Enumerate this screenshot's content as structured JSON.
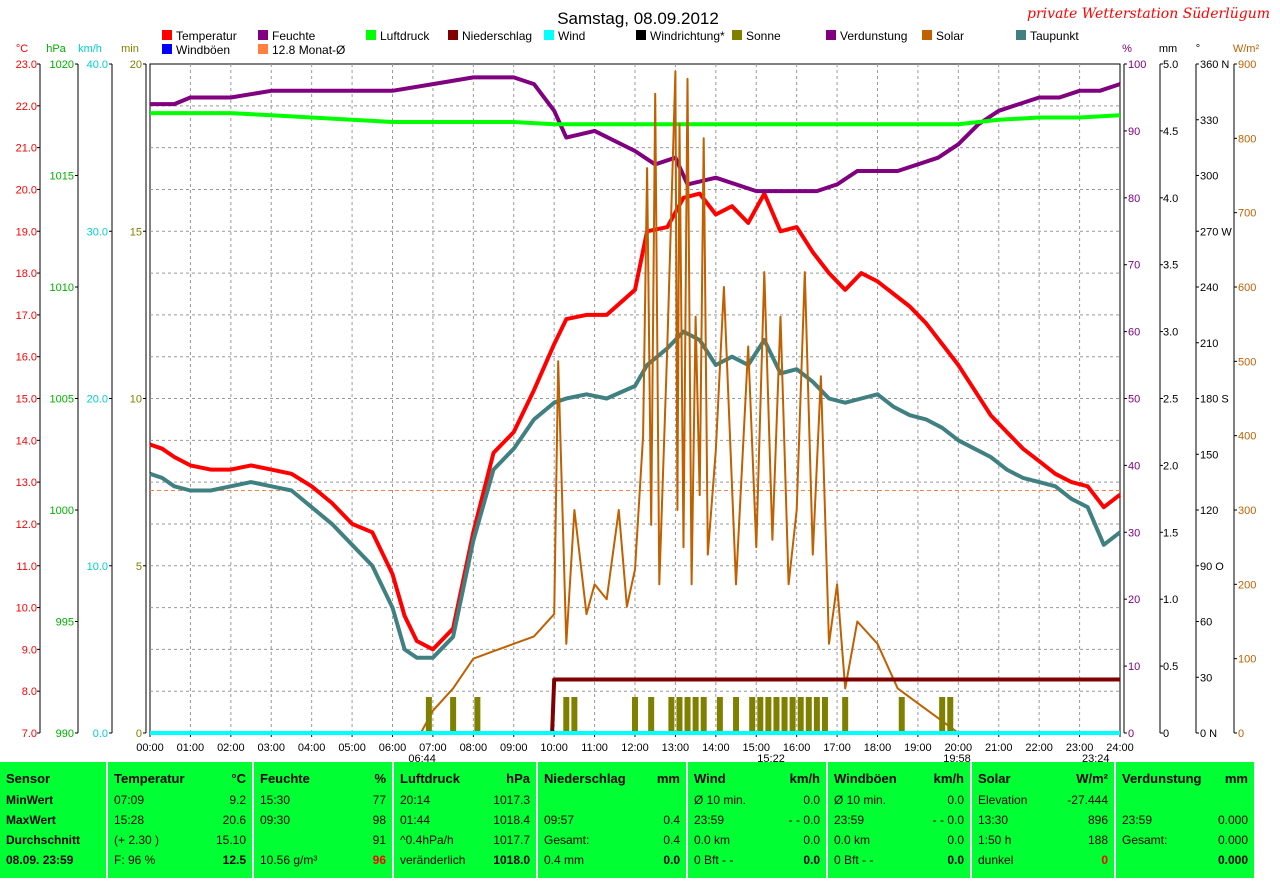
{
  "title": "Samstag, 08.09.2012",
  "station": "private Wetterstation Süderlügum",
  "legend": [
    {
      "label": "Temperatur",
      "color": "#ff0000"
    },
    {
      "label": "Feuchte",
      "color": "#800080"
    },
    {
      "label": "Luftdruck",
      "color": "#00ff00"
    },
    {
      "label": "Niederschlag",
      "color": "#800000"
    },
    {
      "label": "Wind",
      "color": "#00ffff"
    },
    {
      "label": "Windrichtung*",
      "color": "#000000"
    },
    {
      "label": "Sonne",
      "color": "#808000"
    },
    {
      "label": "Verdunstung",
      "color": "#800080"
    },
    {
      "label": "Solar",
      "color": "#c06000"
    },
    {
      "label": "Taupunkt",
      "color": "#408080"
    },
    {
      "label": "Windböen",
      "color": "#0000ff"
    },
    {
      "label": "12.8 Monat-Ø",
      "color": "#ff8040"
    }
  ],
  "chart_data": {
    "type": "line",
    "x_unit": "time of day",
    "x_ticks": [
      "00:00",
      "01:00",
      "02:00",
      "03:00",
      "04:00",
      "05:00",
      "06:00",
      "07:00",
      "08:00",
      "09:00",
      "10:00",
      "11:00",
      "12:00",
      "13:00",
      "14:00",
      "15:00",
      "16:00",
      "17:00",
      "18:00",
      "19:00",
      "20:00",
      "21:00",
      "22:00",
      "23:00",
      "24:00"
    ],
    "x_marks": [
      "06:44",
      "15:22",
      "19:58",
      "23:24"
    ],
    "axes": {
      "temperature": {
        "unit": "°C",
        "range": [
          7.0,
          23.0
        ],
        "ticks": [
          "7.0",
          "8.0",
          "9.0",
          "10.0",
          "11.0",
          "12.0",
          "13.0",
          "14.0",
          "15.0",
          "16.0",
          "17.0",
          "18.0",
          "19.0",
          "20.0",
          "21.0",
          "22.0",
          "23.0"
        ],
        "color": "#ff0000"
      },
      "pressure": {
        "unit": "hPa",
        "range": [
          990,
          1020
        ],
        "ticks": [
          "990",
          "995",
          "1000",
          "1005",
          "1010",
          "1015",
          "1020"
        ],
        "color": "#00b000"
      },
      "wind": {
        "unit": "km/h",
        "range": [
          0,
          40
        ],
        "ticks": [
          "0.0",
          "10.0",
          "20.0",
          "30.0",
          "40.0"
        ],
        "color": "#00d0d0"
      },
      "sun": {
        "unit": "min",
        "range": [
          0,
          20
        ],
        "ticks": [
          "0",
          "5",
          "10",
          "15",
          "20"
        ],
        "color": "#808000"
      },
      "humidity": {
        "unit": "%",
        "range": [
          0,
          100
        ],
        "ticks": [
          "0",
          "10",
          "20",
          "30",
          "40",
          "50",
          "60",
          "70",
          "80",
          "90",
          "100"
        ],
        "color": "#800080"
      },
      "precip": {
        "unit": "mm",
        "range": [
          0,
          5
        ],
        "ticks": [
          "0",
          "0.5",
          "1.0",
          "1.5",
          "2.0",
          "2.5",
          "3.0",
          "3.5",
          "4.0",
          "4.5",
          "5.0"
        ],
        "color": "#000000"
      },
      "direction": {
        "unit": "°",
        "range": [
          0,
          360
        ],
        "ticks": [
          "0 N",
          "30",
          "60",
          "90 O",
          "120",
          "150",
          "180 S",
          "210",
          "240",
          "270 W",
          "300",
          "330",
          "360 N"
        ],
        "color": "#000000"
      },
      "solar": {
        "unit": "W/m²",
        "range": [
          0,
          900
        ],
        "ticks": [
          "0",
          "100",
          "200",
          "300",
          "400",
          "500",
          "600",
          "700",
          "800",
          "900"
        ],
        "color": "#c06000"
      }
    },
    "month_avg_temperature": 12.8,
    "series": [
      {
        "name": "Temperatur",
        "axis": "temperature",
        "color": "#ff0000",
        "x": [
          0,
          0.3,
          0.6,
          1,
          1.5,
          2,
          2.5,
          3,
          3.5,
          4,
          4.5,
          5,
          5.5,
          6,
          6.3,
          6.6,
          7,
          7.5,
          8,
          8.5,
          9,
          9.5,
          10,
          10.3,
          10.8,
          11.3,
          12,
          12.3,
          12.8,
          13.2,
          13.6,
          14,
          14.4,
          14.8,
          15.2,
          15.6,
          16,
          16.4,
          16.8,
          17.2,
          17.6,
          18,
          18.4,
          18.8,
          19.2,
          19.6,
          20,
          20.4,
          20.8,
          21.2,
          21.6,
          22,
          22.4,
          22.8,
          23.2,
          23.6,
          24
        ],
        "y": [
          13.9,
          13.8,
          13.6,
          13.4,
          13.3,
          13.3,
          13.4,
          13.3,
          13.2,
          12.9,
          12.5,
          12.0,
          11.8,
          10.8,
          9.8,
          9.2,
          9.0,
          9.5,
          11.8,
          13.7,
          14.2,
          15.2,
          16.3,
          16.9,
          17.0,
          17.0,
          17.6,
          19.0,
          19.1,
          19.8,
          19.9,
          19.4,
          19.6,
          19.2,
          19.9,
          19.0,
          19.1,
          18.5,
          18.0,
          17.6,
          18.0,
          17.8,
          17.5,
          17.2,
          16.8,
          16.3,
          15.8,
          15.2,
          14.6,
          14.2,
          13.8,
          13.5,
          13.2,
          13.0,
          12.9,
          12.4,
          12.7
        ]
      },
      {
        "name": "Taupunkt",
        "axis": "temperature",
        "color": "#408080",
        "x": [
          0,
          0.3,
          0.6,
          1,
          1.5,
          2,
          2.5,
          3,
          3.5,
          4,
          4.5,
          5,
          5.5,
          6,
          6.3,
          6.6,
          7,
          7.5,
          8,
          8.5,
          9,
          9.5,
          10,
          10.3,
          10.8,
          11.3,
          12,
          12.3,
          12.8,
          13.2,
          13.6,
          14,
          14.4,
          14.8,
          15.2,
          15.6,
          16,
          16.4,
          16.8,
          17.2,
          17.6,
          18,
          18.4,
          18.8,
          19.2,
          19.6,
          20,
          20.4,
          20.8,
          21.2,
          21.6,
          22,
          22.4,
          22.8,
          23.2,
          23.6,
          24
        ],
        "y": [
          13.2,
          13.1,
          12.9,
          12.8,
          12.8,
          12.9,
          13.0,
          12.9,
          12.8,
          12.4,
          12.0,
          11.5,
          11.0,
          10.0,
          9.0,
          8.8,
          8.8,
          9.3,
          11.6,
          13.3,
          13.8,
          14.5,
          14.9,
          15.0,
          15.1,
          15.0,
          15.3,
          15.8,
          16.2,
          16.6,
          16.4,
          15.8,
          16.0,
          15.8,
          16.4,
          15.6,
          15.7,
          15.4,
          15.0,
          14.9,
          15.0,
          15.1,
          14.8,
          14.6,
          14.5,
          14.3,
          14.0,
          13.8,
          13.6,
          13.3,
          13.1,
          13.0,
          12.9,
          12.6,
          12.4,
          11.5,
          11.8
        ]
      },
      {
        "name": "Feuchte",
        "axis": "humidity",
        "color": "#800080",
        "x": [
          0,
          0.6,
          1,
          2,
          3,
          4,
          5,
          6,
          7,
          8,
          9,
          9.5,
          10,
          10.3,
          11,
          12,
          12.5,
          13,
          13.3,
          14,
          14.5,
          15,
          15.5,
          16,
          16.5,
          17,
          17.5,
          18,
          18.5,
          19,
          19.5,
          20,
          20.5,
          21,
          21.5,
          22,
          22.5,
          23,
          23.5,
          24
        ],
        "y": [
          94,
          94,
          95,
          95,
          96,
          96,
          96,
          96,
          97,
          98,
          98,
          97,
          93,
          89,
          90,
          87,
          85,
          86,
          82,
          83,
          82,
          81,
          81,
          81,
          81,
          82,
          84,
          84,
          84,
          85,
          86,
          88,
          91,
          93,
          94,
          95,
          95,
          96,
          96,
          97
        ]
      },
      {
        "name": "Luftdruck",
        "axis": "pressure",
        "color": "#00ff00",
        "x": [
          0,
          1,
          2,
          3,
          4,
          5,
          6,
          7,
          8,
          9,
          10,
          11,
          12,
          13,
          14,
          15,
          16,
          17,
          18,
          19,
          20,
          21,
          22,
          23,
          24
        ],
        "y": [
          1017.8,
          1017.8,
          1017.8,
          1017.7,
          1017.6,
          1017.5,
          1017.4,
          1017.4,
          1017.4,
          1017.4,
          1017.3,
          1017.3,
          1017.3,
          1017.3,
          1017.3,
          1017.3,
          1017.3,
          1017.3,
          1017.3,
          1017.3,
          1017.3,
          1017.5,
          1017.6,
          1017.6,
          1017.7
        ]
      },
      {
        "name": "Solar",
        "axis": "solar",
        "color": "#c06000",
        "x": [
          6.7,
          7,
          7.5,
          8,
          8.5,
          9,
          9.5,
          10,
          10.1,
          10.3,
          10.5,
          10.8,
          11,
          11.3,
          11.6,
          11.8,
          12,
          12.2,
          12.3,
          12.4,
          12.5,
          12.6,
          12.8,
          13,
          13.05,
          13.1,
          13.2,
          13.3,
          13.4,
          13.5,
          13.6,
          13.7,
          13.8,
          14,
          14.2,
          14.5,
          14.8,
          15,
          15.2,
          15.4,
          15.6,
          15.8,
          16,
          16.2,
          16.4,
          16.6,
          16.8,
          17,
          17.2,
          17.5,
          18,
          18.5,
          19,
          19.5,
          20
        ],
        "y": [
          0,
          30,
          60,
          100,
          110,
          120,
          130,
          160,
          500,
          120,
          300,
          160,
          200,
          180,
          300,
          170,
          220,
          400,
          760,
          280,
          860,
          200,
          520,
          890,
          300,
          820,
          250,
          880,
          200,
          560,
          320,
          800,
          240,
          380,
          600,
          200,
          520,
          250,
          620,
          260,
          560,
          200,
          300,
          620,
          240,
          480,
          120,
          200,
          60,
          150,
          120,
          60,
          40,
          20,
          0
        ]
      },
      {
        "name": "Sonne",
        "axis": "sun",
        "color": "#808000",
        "type": "bar",
        "x": [
          6.9,
          7.5,
          8.1,
          10.3,
          10.5,
          12.0,
          12.4,
          12.9,
          13.1,
          13.3,
          13.5,
          13.7,
          14.1,
          14.5,
          14.9,
          15.1,
          15.3,
          15.5,
          15.7,
          15.9,
          16.1,
          16.3,
          16.5,
          16.7,
          17.2,
          18.6,
          19.6,
          19.8
        ],
        "y": [
          1,
          1,
          1,
          1,
          1,
          1,
          1,
          1,
          1,
          1,
          1,
          1,
          1,
          1,
          1,
          1,
          1,
          1,
          1,
          1,
          1,
          1,
          1,
          1,
          1,
          1,
          1,
          1
        ]
      },
      {
        "name": "Niederschlag",
        "axis": "precip",
        "color": "#800000",
        "x": [
          0,
          9.95,
          10.0,
          24
        ],
        "y": [
          0,
          0,
          0.4,
          0.4
        ]
      },
      {
        "name": "Wind",
        "axis": "wind",
        "color": "#00ffff",
        "x": [
          0,
          24
        ],
        "y": [
          0,
          0
        ]
      }
    ]
  },
  "panel": [
    {
      "title": "Sensor",
      "unit": "",
      "rows": [
        [
          "MinWert",
          ""
        ],
        [
          "MaxWert",
          ""
        ],
        [
          "Durchschnitt",
          ""
        ],
        [
          "08.09. 23:59",
          ""
        ]
      ],
      "bold": true
    },
    {
      "title": "Temperatur",
      "unit": "°C",
      "rows": [
        [
          "07:09",
          "9.2"
        ],
        [
          "15:28",
          "20.6"
        ],
        [
          "(+ 2.30 )",
          "15.10"
        ],
        [
          "F: 96 %",
          "12.5"
        ]
      ]
    },
    {
      "title": "Feuchte",
      "unit": "%",
      "rows": [
        [
          "15:30",
          "77"
        ],
        [
          "09:30",
          "98"
        ],
        [
          "",
          "91"
        ],
        [
          "10.56 g/m³",
          "96"
        ]
      ],
      "last_red": true
    },
    {
      "title": "Luftdruck",
      "unit": "hPa",
      "rows": [
        [
          "20:14",
          "1017.3"
        ],
        [
          "01:44",
          "1018.4"
        ],
        [
          "^0.4hPa/h",
          "1017.7"
        ],
        [
          "veränderlich",
          "1018.0"
        ]
      ]
    },
    {
      "title": "Niederschlag",
      "unit": "mm",
      "rows": [
        [
          "",
          ""
        ],
        [
          "09:57",
          "0.4"
        ],
        [
          "Gesamt:",
          "0.4"
        ],
        [
          "0.4 mm",
          "0.0"
        ]
      ]
    },
    {
      "title": "Wind",
      "unit": "km/h",
      "rows": [
        [
          "Ø 10 min.",
          "0.0"
        ],
        [
          "23:59",
          "- - 0.0"
        ],
        [
          "0.0 km",
          "0.0"
        ],
        [
          "0 Bft - -",
          "0.0"
        ]
      ]
    },
    {
      "title": "Windböen",
      "unit": "km/h",
      "rows": [
        [
          "Ø 10 min.",
          "0.0"
        ],
        [
          "23:59",
          "- - 0.0"
        ],
        [
          "0.0 km",
          "0.0"
        ],
        [
          "0 Bft - -",
          "0.0"
        ]
      ]
    },
    {
      "title": "Solar",
      "unit": "W/m²",
      "rows": [
        [
          "Elevation",
          "-27.444"
        ],
        [
          "13:30",
          "896"
        ],
        [
          "1:50 h",
          "188"
        ],
        [
          "dunkel",
          "0"
        ]
      ],
      "last_red": true
    },
    {
      "title": "Verdunstung",
      "unit": "mm",
      "rows": [
        [
          "",
          ""
        ],
        [
          "23:59",
          "0.000"
        ],
        [
          "Gesamt:",
          "0.000"
        ],
        [
          "",
          "0.000"
        ]
      ]
    }
  ]
}
